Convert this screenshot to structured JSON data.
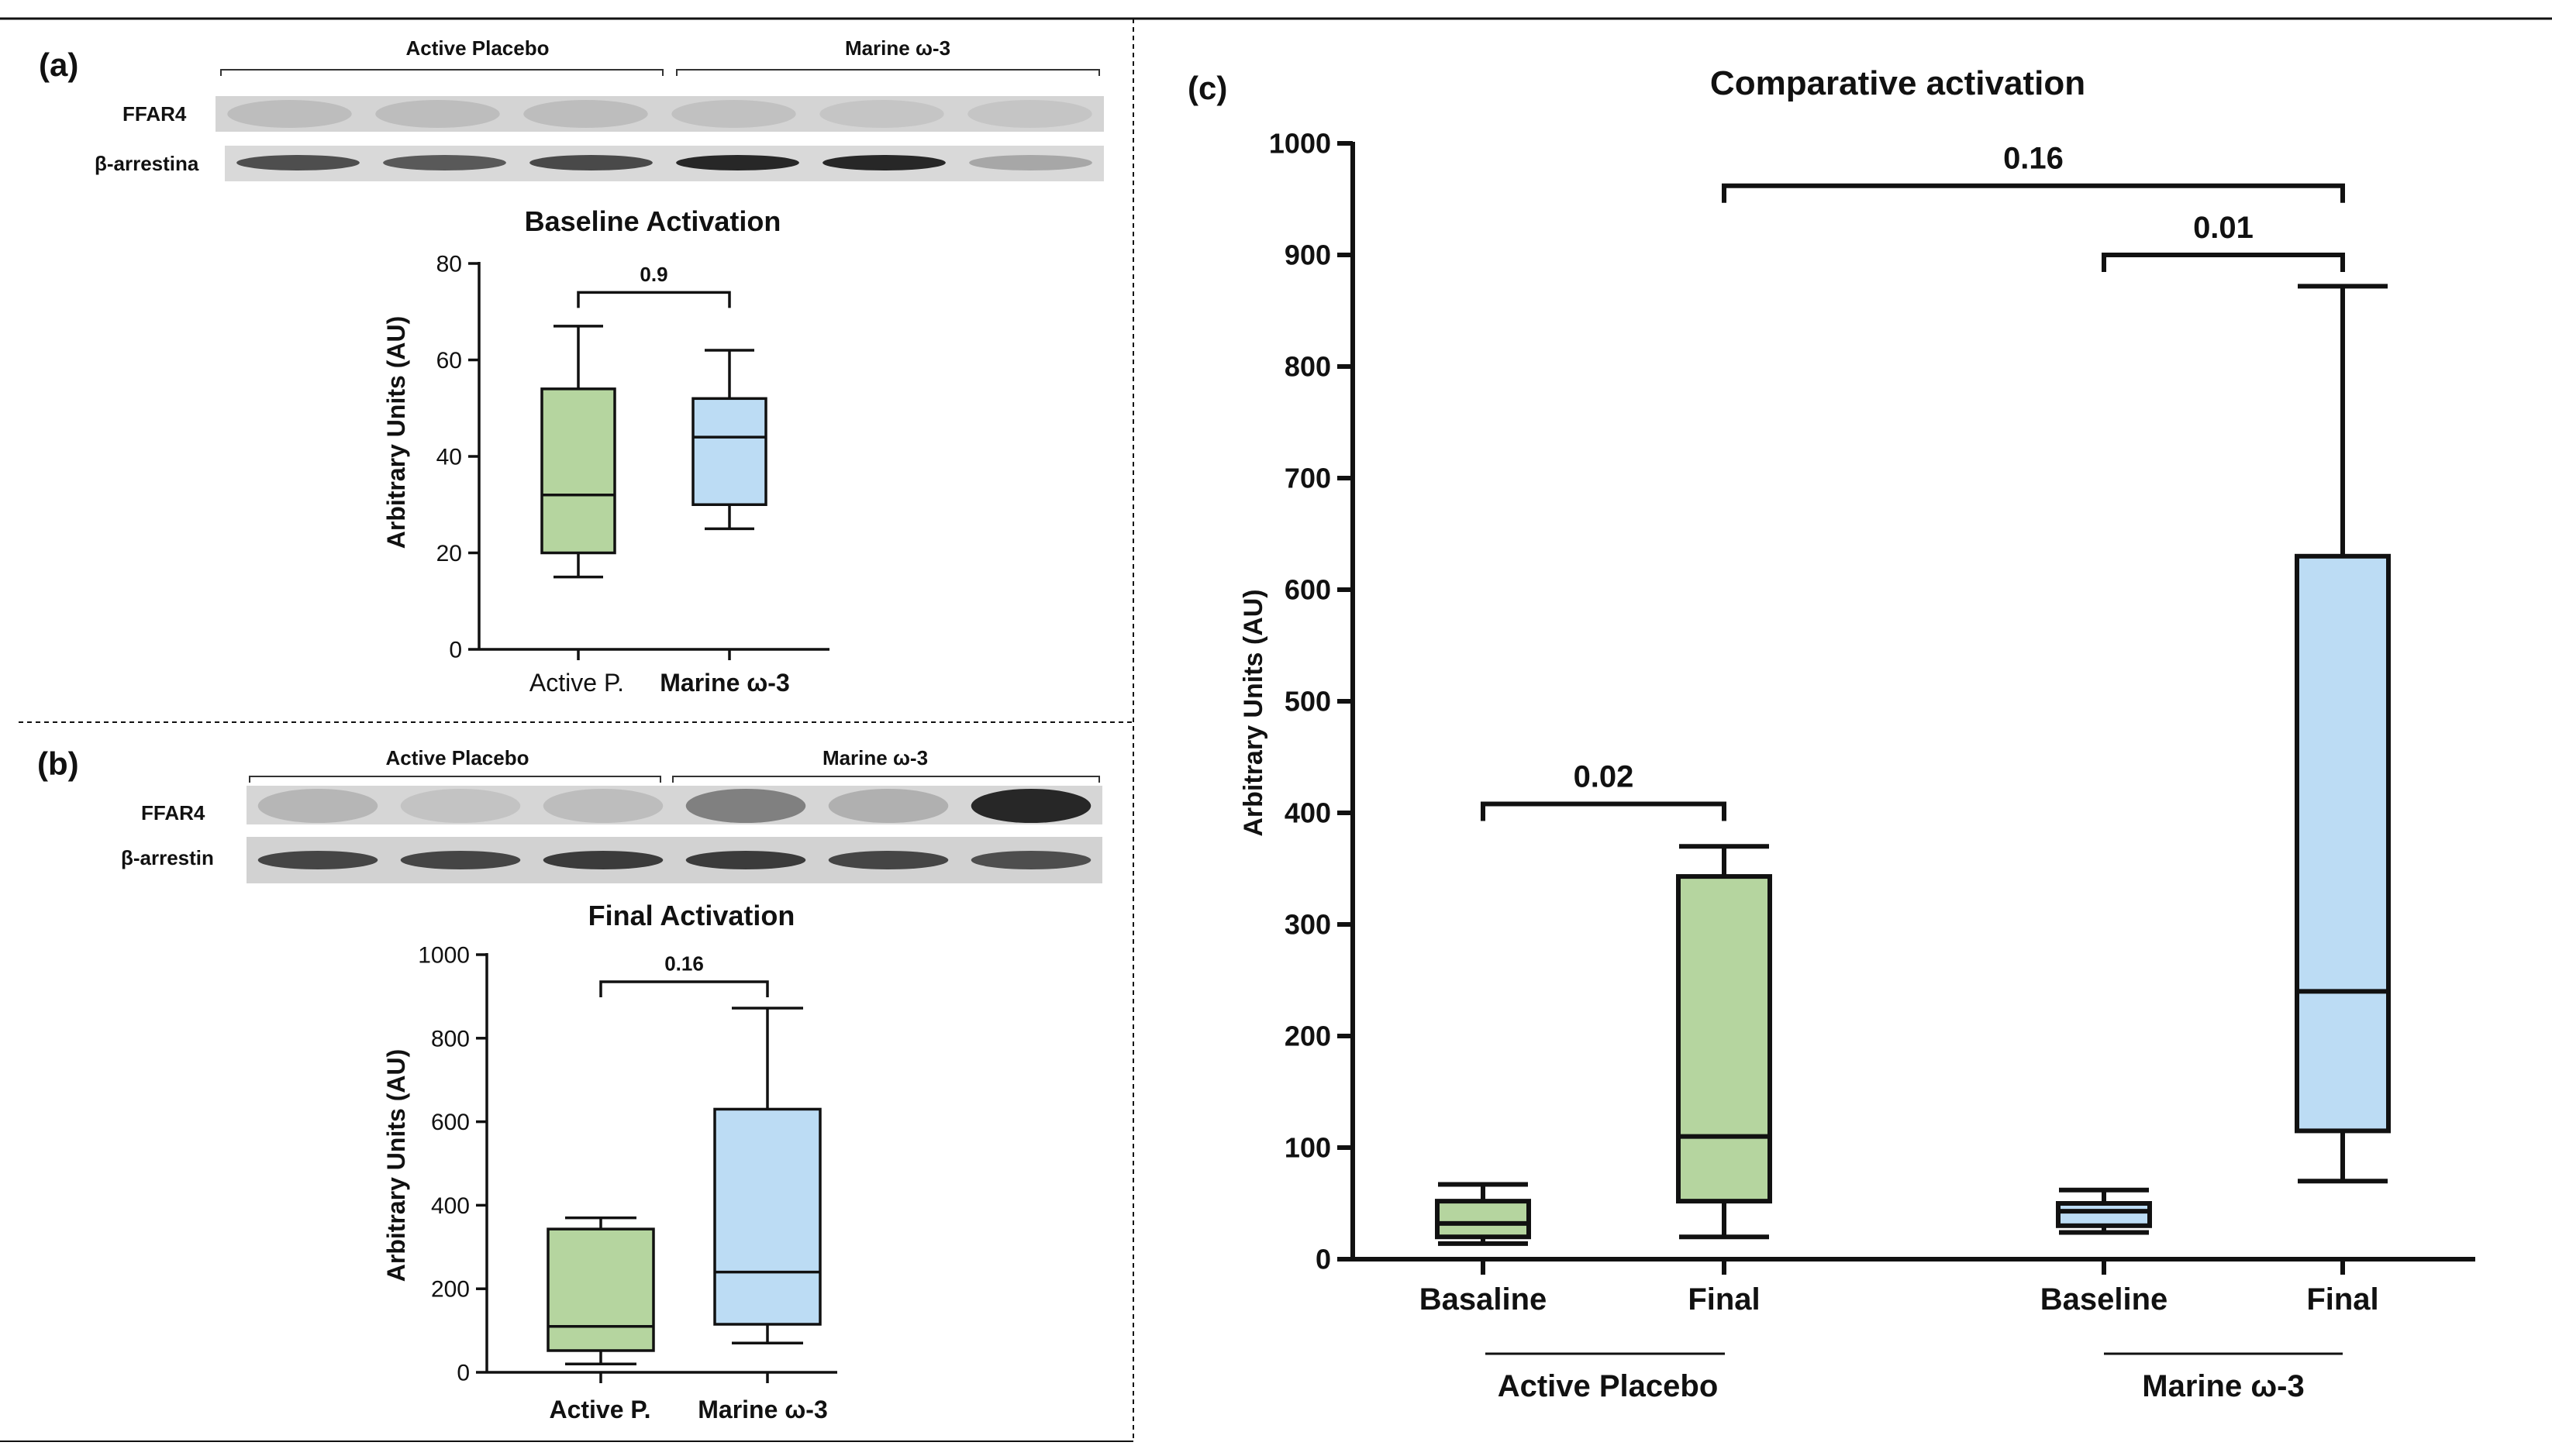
{
  "colors": {
    "green_fill": "#b5d59f",
    "blue_fill": "#bcdcf4",
    "line": "#111111",
    "band_light": "#d8d8d8",
    "band_dark": "#111111"
  },
  "panel_a": {
    "label": "(a)",
    "groups": [
      "Active Placebo",
      "Marine ω-3"
    ],
    "blot_labels": [
      "FFAR4",
      "β-arrestina"
    ],
    "ffar4_intensity": [
      0.18,
      0.18,
      0.18,
      0.16,
      0.14,
      0.14
    ],
    "arrestin_intensity": [
      0.75,
      0.7,
      0.78,
      0.95,
      0.95,
      0.3
    ]
  },
  "panel_b": {
    "label": "(b)",
    "groups": [
      "Active Placebo",
      "Marine ω-3"
    ],
    "blot_labels": [
      "FFAR4",
      "β-arrestin"
    ],
    "ffar4_intensity": [
      0.22,
      0.15,
      0.18,
      0.5,
      0.25,
      0.95
    ],
    "arrestin_intensity": [
      0.8,
      0.8,
      0.85,
      0.85,
      0.8,
      0.75
    ]
  },
  "panel_c": {
    "label": "(c)"
  },
  "chart_data": [
    {
      "type": "box",
      "title": "Baseline Activation",
      "ylabel": "Arbitrary Units (AU)",
      "xlabel": "",
      "ylim": [
        0,
        80
      ],
      "yticks": [
        0,
        20,
        40,
        60,
        80
      ],
      "grid": false,
      "categories": [
        "Active P.",
        "Marine ω-3"
      ],
      "boxes": [
        {
          "name": "Active P.",
          "min": 15,
          "q1": 20,
          "median": 32,
          "q3": 54,
          "max": 67,
          "color": "green"
        },
        {
          "name": "Marine ω-3",
          "min": 25,
          "q1": 30,
          "median": 44,
          "q3": 52,
          "max": 62,
          "color": "blue"
        }
      ],
      "annotations": [
        {
          "text": "0.9",
          "between": [
            0,
            1
          ],
          "y": 74
        }
      ]
    },
    {
      "type": "box",
      "title": "Final Activation",
      "ylabel": "Arbitrary Units (AU)",
      "xlabel": "",
      "ylim": [
        0,
        1000
      ],
      "yticks": [
        0,
        200,
        400,
        600,
        800,
        1000
      ],
      "grid": false,
      "categories": [
        "Active P.",
        "Marine ω-3"
      ],
      "boxes": [
        {
          "name": "Active P.",
          "min": 20,
          "q1": 52,
          "median": 110,
          "q3": 343,
          "max": 370,
          "color": "green"
        },
        {
          "name": "Marine ω-3",
          "min": 70,
          "q1": 115,
          "median": 240,
          "q3": 630,
          "max": 872,
          "color": "blue"
        }
      ],
      "annotations": [
        {
          "text": "0.16",
          "between": [
            0,
            1
          ],
          "y": 935
        }
      ]
    },
    {
      "type": "box",
      "title": "Comparative activation",
      "ylabel": "Arbitrary Units (AU)",
      "xlabel": "",
      "ylim": [
        0,
        1000
      ],
      "yticks": [
        0,
        100,
        200,
        300,
        400,
        500,
        600,
        700,
        800,
        900,
        1000
      ],
      "grid": false,
      "categories": [
        "Basaline",
        "Final",
        "Baseline",
        "Final"
      ],
      "group_labels": [
        {
          "text": "Active Placebo",
          "covers": [
            0,
            1
          ]
        },
        {
          "text": "Marine ω-3",
          "covers": [
            2,
            3
          ]
        }
      ],
      "boxes": [
        {
          "name": "Basaline",
          "min": 14,
          "q1": 20,
          "median": 32,
          "q3": 52,
          "max": 67,
          "color": "green"
        },
        {
          "name": "Final",
          "min": 20,
          "q1": 52,
          "median": 110,
          "q3": 343,
          "max": 370,
          "color": "green"
        },
        {
          "name": "Baseline",
          "min": 24,
          "q1": 30,
          "median": 43,
          "q3": 50,
          "max": 62,
          "color": "blue"
        },
        {
          "name": "Final",
          "min": 70,
          "q1": 115,
          "median": 240,
          "q3": 630,
          "max": 872,
          "color": "blue"
        }
      ],
      "annotations": [
        {
          "text": "0.02",
          "between": [
            0,
            1
          ],
          "y": 408
        },
        {
          "text": "0.01",
          "between": [
            2,
            3
          ],
          "y": 900
        },
        {
          "text": "0.16",
          "between": [
            1,
            3
          ],
          "y": 962
        }
      ]
    }
  ]
}
